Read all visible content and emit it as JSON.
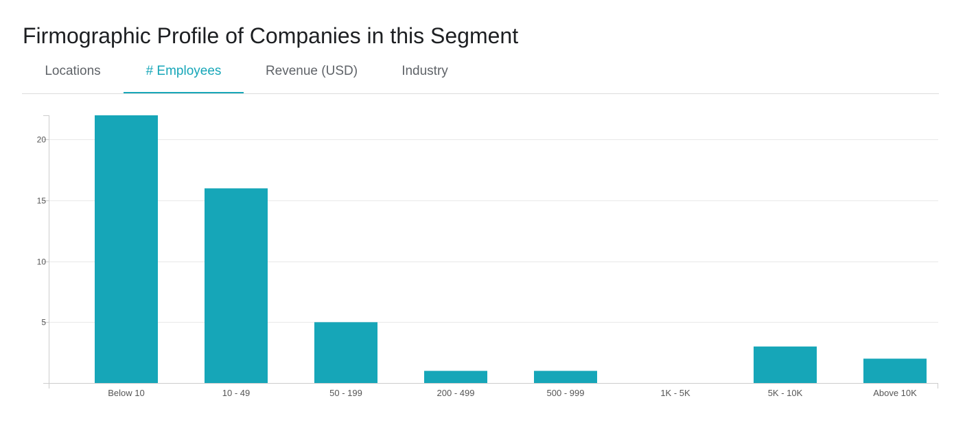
{
  "page": {
    "title": "Firmographic Profile of Companies in this Segment"
  },
  "tabs": [
    {
      "label": "Locations",
      "active": false
    },
    {
      "label": "# Employees",
      "active": true
    },
    {
      "label": "Revenue (USD)",
      "active": false
    },
    {
      "label": "Industry",
      "active": false
    }
  ],
  "colors": {
    "accent": "#16a6b8",
    "bar": "#16a6b8",
    "grid": "#e8e8e8",
    "axis": "#cccccc",
    "tick_text": "#555555"
  },
  "chart_data": {
    "type": "bar",
    "categories": [
      "Below 10",
      "10 - 49",
      "50 - 199",
      "200 - 499",
      "500 - 999",
      "1K - 5K",
      "5K - 10K",
      "Above 10K"
    ],
    "values": [
      22,
      16,
      5,
      1,
      1,
      0,
      3,
      2
    ],
    "y_ticks": [
      5,
      10,
      15,
      20
    ],
    "ylim": [
      0,
      22
    ],
    "title": "",
    "xlabel": "",
    "ylabel": "",
    "grid": true,
    "legend": "none"
  }
}
